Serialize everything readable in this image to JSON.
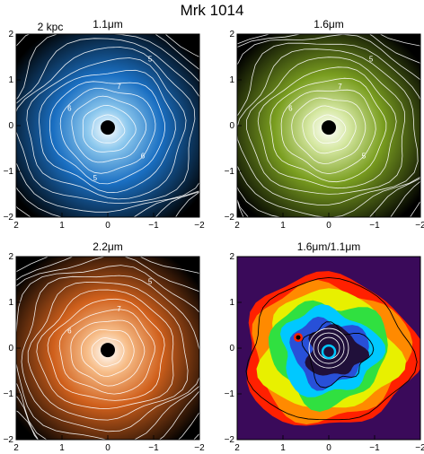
{
  "figure": {
    "title": "Mrk 1014",
    "scale_bar_label": "2 kpc",
    "panels": [
      {
        "title": "1.1μm",
        "colormap": "blue",
        "colors": {
          "outer": "#000000",
          "mid": "#1a6fc2",
          "inner": "#8ec9ee",
          "core": "#ffffff"
        },
        "contour_labels": [
          "5",
          "6",
          "7",
          "6",
          "5"
        ]
      },
      {
        "title": "1.6μm",
        "colormap": "green",
        "colors": {
          "outer": "#000000",
          "mid": "#7a9e20",
          "inner": "#d6e8a3",
          "core": "#ffffff"
        },
        "contour_labels": [
          "5",
          "6",
          "7",
          "5"
        ]
      },
      {
        "title": "2.2μm",
        "colormap": "orange",
        "colors": {
          "outer": "#000000",
          "mid": "#d0601c",
          "inner": "#f7be8a",
          "core": "#ffffff"
        },
        "contour_labels": [
          "5",
          "6",
          "7"
        ]
      },
      {
        "title": "1.6μm/1.1μm",
        "colormap": "rainbow",
        "colors": {
          "background": "#3a0a5a",
          "outer": "#ff2000",
          "ring": "#00c8ff",
          "inner": "#20103a"
        },
        "contour_labels": []
      }
    ]
  },
  "axes": {
    "x_ticks": [
      "2",
      "1",
      "0",
      "−1",
      "−2"
    ],
    "y_ticks": [
      "2",
      "1",
      "0",
      "−1",
      "−2"
    ]
  }
}
